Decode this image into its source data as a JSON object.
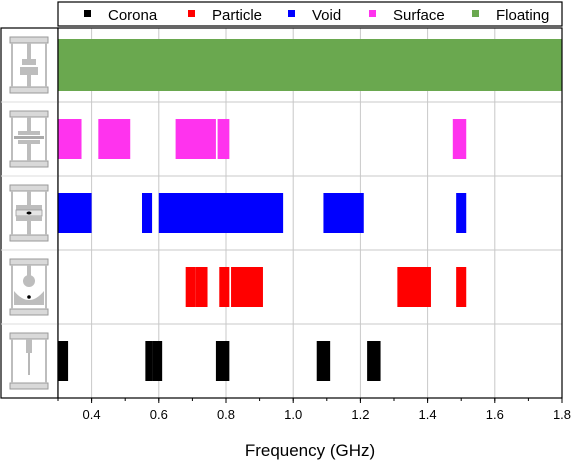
{
  "chart_data": {
    "type": "bar",
    "orientation": "horizontal-range",
    "xlabel": "Frequency (GHz)",
    "xlim": [
      0.3,
      1.8
    ],
    "xticks": [
      0.4,
      0.6,
      0.8,
      1.0,
      1.2,
      1.4,
      1.6,
      1.8
    ],
    "xtick_labels": [
      "0.4",
      "0.6",
      "0.8",
      "1.0",
      "1.2",
      "1.4",
      "1.6",
      "1.8"
    ],
    "grid": true,
    "legend_placement": "top",
    "series": [
      {
        "name": "Corona",
        "color": "#000000",
        "row": 4,
        "ranges": [
          [
            0.3,
            0.33
          ],
          [
            0.56,
            0.58
          ],
          [
            0.58,
            0.61
          ],
          [
            0.77,
            0.81
          ],
          [
            1.07,
            1.11
          ],
          [
            1.22,
            1.26
          ]
        ]
      },
      {
        "name": "Particle",
        "color": "#ff0000",
        "row": 3,
        "ranges": [
          [
            0.68,
            0.71
          ],
          [
            0.71,
            0.745
          ],
          [
            0.78,
            0.81
          ],
          [
            0.815,
            0.91
          ],
          [
            1.31,
            1.41
          ],
          [
            1.485,
            1.515
          ]
        ]
      },
      {
        "name": "Void",
        "color": "#0000ff",
        "row": 2,
        "ranges": [
          [
            0.3,
            0.4
          ],
          [
            0.55,
            0.58
          ],
          [
            0.6,
            0.97
          ],
          [
            1.09,
            1.21
          ],
          [
            1.485,
            1.515
          ]
        ]
      },
      {
        "name": "Surface",
        "color": "#ff33ee",
        "row": 1,
        "ranges": [
          [
            0.3,
            0.37
          ],
          [
            0.42,
            0.515
          ],
          [
            0.65,
            0.77
          ],
          [
            0.775,
            0.81
          ],
          [
            1.475,
            1.515
          ]
        ]
      },
      {
        "name": "Floating",
        "color": "#6aa84f",
        "row": 0,
        "ranges": [
          [
            0.3,
            1.8
          ]
        ]
      }
    ]
  },
  "icons": [
    "floating-electrode-icon",
    "surface-electrode-icon",
    "void-electrode-icon",
    "particle-electrode-icon",
    "corona-needle-icon"
  ]
}
